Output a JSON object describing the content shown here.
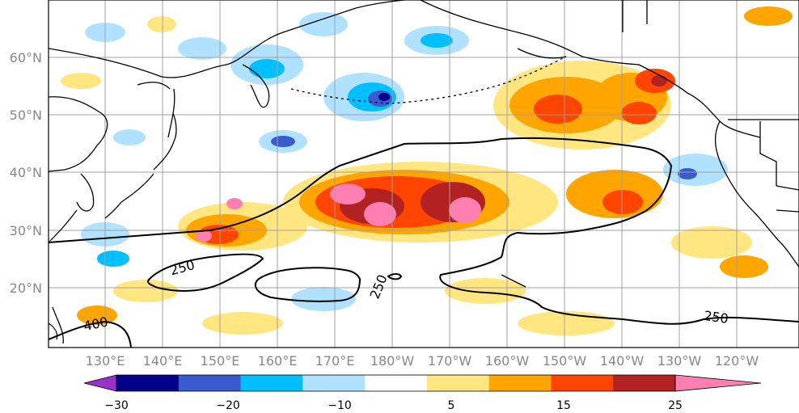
{
  "map": {
    "lon_ticks": [
      "130°E",
      "140°E",
      "150°E",
      "160°E",
      "170°E",
      "180°W",
      "170°W",
      "160°W",
      "150°W",
      "140°W",
      "130°W",
      "120°W"
    ],
    "lat_ticks": [
      "60°N",
      "50°N",
      "40°N",
      "30°N",
      "20°N"
    ],
    "contour_labels": [
      "250",
      "250",
      "250",
      "400"
    ]
  },
  "colorbar": {
    "tick_labels": [
      "−30",
      "−20",
      "−10",
      "5",
      "15",
      "25"
    ],
    "colors": [
      "#9932CC",
      "#00008B",
      "#3A5BD0",
      "#00BFFF",
      "#B0E2FF",
      "#FFFFFF",
      "#FFE680",
      "#FFA500",
      "#FF4500",
      "#B22222",
      "#FF80B0"
    ]
  }
}
